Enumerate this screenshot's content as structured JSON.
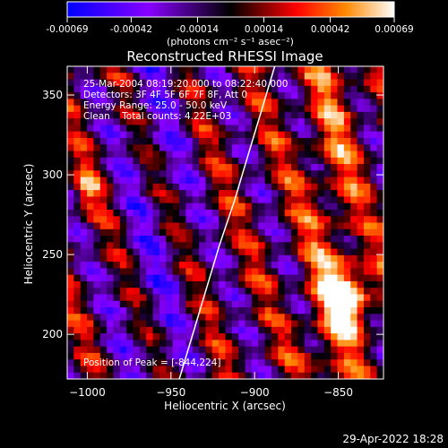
{
  "chart_data": {
    "type": "heatmap",
    "title": "Reconstructed RHESSI Image",
    "xlabel": "Heliocentric X (arcsec)",
    "ylabel": "Heliocentric Y (arcsec)",
    "xlim": [
      -1012,
      -823
    ],
    "ylim": [
      172,
      368
    ],
    "x_ticks": [
      -1000,
      -950,
      -900,
      -850
    ],
    "x_tick_labels": [
      "−1000",
      "−950",
      "−900",
      "−850"
    ],
    "y_ticks": [
      200,
      250,
      300,
      350
    ],
    "y_tick_labels": [
      "200",
      "250",
      "300",
      "350"
    ],
    "colorbar": {
      "range": [
        -0.00069,
        0.00069
      ],
      "ticks": [
        -0.00069,
        -0.00042,
        -0.00014,
        0.00014,
        0.00042,
        0.00069
      ],
      "tick_labels": [
        "-0.00069",
        "-0.00042",
        "-0.00014",
        "0.00014",
        "0.00042",
        "0.00069"
      ],
      "unit_label": "(photons cm⁻² s⁻¹ asec⁻²)",
      "colors": [
        "#0000ff",
        "#8800ff",
        "#000000",
        "#ff0000",
        "#ff8800",
        "#ffffff"
      ]
    },
    "annotations": [
      "25-Mar-2004 08:19:20.000 to 08:22:40.000",
      "Detectors: 3F 4F 5F 6F 7F 8F, Att 0",
      "Energy Range: 25.0 - 50.0 keV",
      "Clean    Total counts: 4.22E+03"
    ],
    "peak_label": "Position of Peak = [-844,224]",
    "peak": {
      "x": -844,
      "y": 224,
      "value": 0.00069
    },
    "limb_curve": {
      "x": [
        -945,
        -937,
        -929,
        -921,
        -912,
        -904,
        -896,
        -888
      ],
      "y": [
        172,
        200,
        228,
        256,
        284,
        312,
        340,
        368
      ]
    }
  },
  "footer": {
    "timestamp": "29-Apr-2022 18:28"
  }
}
